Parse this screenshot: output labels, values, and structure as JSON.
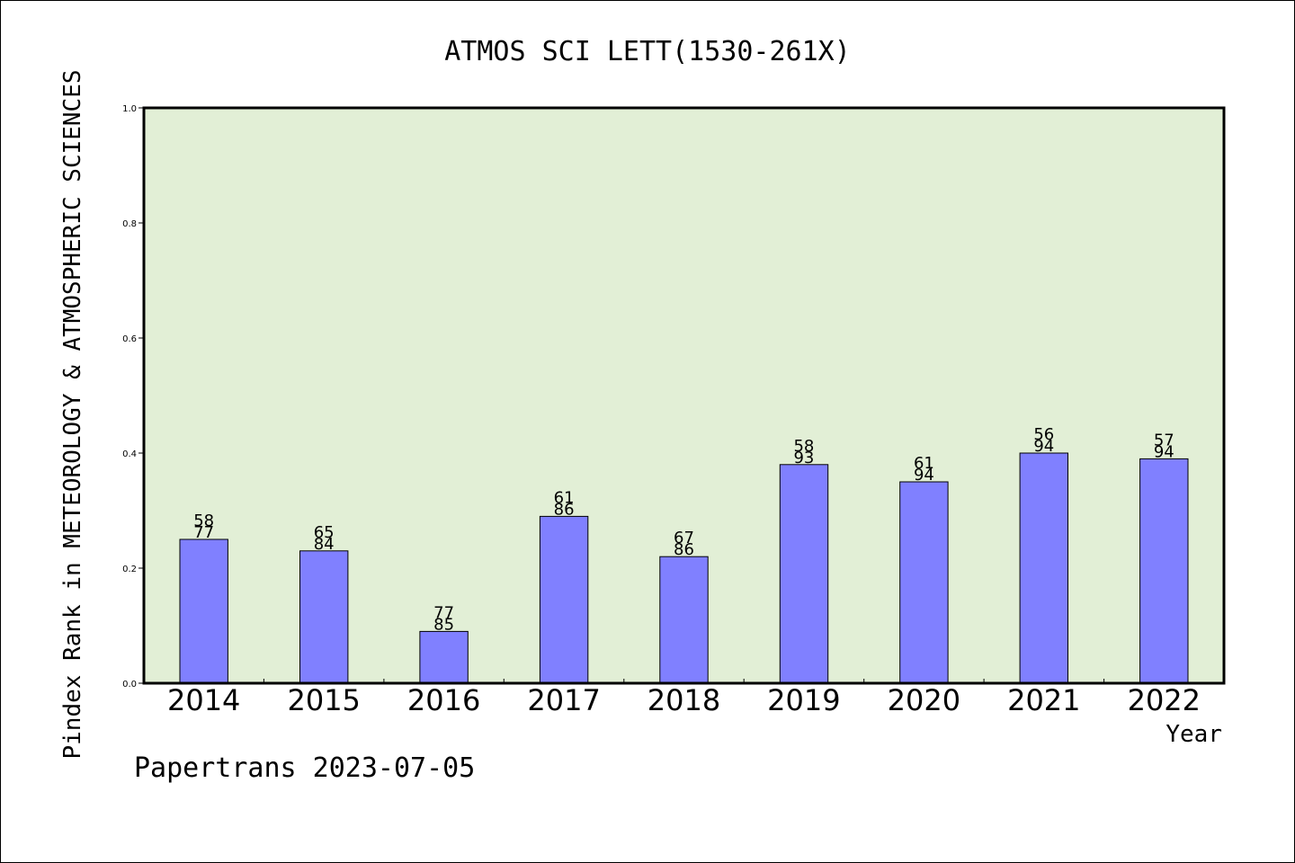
{
  "chart_data": {
    "type": "bar",
    "title": "ATMOS SCI LETT(1530-261X)",
    "xlabel": "Year",
    "ylabel": "Pindex Rank in METEOROLOGY & ATMOSPHERIC SCIENCES",
    "categories": [
      "2014",
      "2015",
      "2016",
      "2017",
      "2018",
      "2019",
      "2020",
      "2021",
      "2022"
    ],
    "values": [
      0.25,
      0.23,
      0.09,
      0.29,
      0.22,
      0.38,
      0.35,
      0.4,
      0.39
    ],
    "bar_labels_top": [
      "58",
      "65",
      "77",
      "61",
      "67",
      "58",
      "61",
      "56",
      "57"
    ],
    "bar_labels_bottom": [
      "77",
      "84",
      "85",
      "86",
      "86",
      "93",
      "94",
      "94",
      "94"
    ],
    "ylim": [
      0.0,
      1.0
    ],
    "yticks": [
      "0.0",
      "0.2",
      "0.4",
      "0.6",
      "0.8",
      "1.0"
    ],
    "grid": false,
    "colors": {
      "bar": "#8080ff",
      "plot_background": "#e2efd6",
      "axes": "#000000"
    }
  },
  "footer": "Papertrans 2023-07-05"
}
